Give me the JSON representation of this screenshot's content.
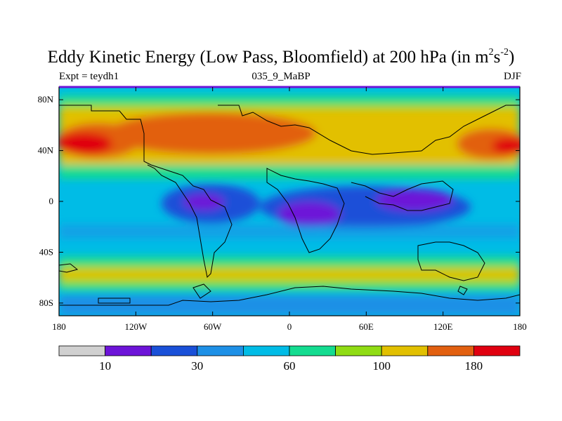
{
  "header": {
    "title_prefix": "Eddy Kinetic Energy (Low Pass, Bloomfield) at 200 hPa (in m",
    "title_sup1": "2",
    "title_mid": "s",
    "title_sup2": "-2",
    "title_suffix": ")",
    "left_label": "Expt = teydh1",
    "center_label": "035_9_MaBP",
    "right_label": "DJF"
  },
  "map": {
    "lon_tick_labels": [
      "180",
      "120W",
      "60W",
      "0",
      "60E",
      "120E",
      "180"
    ],
    "lat_tick_labels": [
      "80N",
      "40N",
      "0",
      "40S",
      "80S"
    ],
    "lon_ticks": [
      -180,
      -120,
      -60,
      0,
      60,
      120,
      180
    ],
    "lat_ticks": [
      80,
      40,
      0,
      -40,
      -80
    ],
    "lon_range": [
      -180,
      180
    ],
    "lat_range": [
      -90,
      90
    ]
  },
  "colorbar": {
    "colors": [
      "#d0d0d0",
      "#6d14d8",
      "#1a50d8",
      "#1e90e6",
      "#00bce6",
      "#14dc90",
      "#90dc14",
      "#e2c000",
      "#e26010",
      "#e00010"
    ],
    "labels": [
      "10",
      "30",
      "60",
      "100",
      "180"
    ],
    "label_boundary_index": [
      1,
      3,
      5,
      7,
      9
    ]
  },
  "chart_data": {
    "type": "heatmap",
    "title": "Eddy Kinetic Energy (Low Pass, Bloomfield) at 200 hPa (in m2s-2)",
    "subtitle": "035_9_MaBP",
    "left_annotation": "Expt = teydh1",
    "right_annotation": "DJF",
    "xlabel": "",
    "ylabel": "",
    "xlim": [
      -180,
      180
    ],
    "ylim": [
      -90,
      90
    ],
    "contour_labels": [
      "10",
      "30",
      "60",
      "100",
      "180"
    ],
    "description_fields": {
      "levels": 10,
      "approx_peaks_m2s2": {
        "north_atlantic_jet": 180,
        "north_pacific_edge": 180
      },
      "approx_minima_m2s2": {
        "tropical_africa": 10,
        "maritime_continent": 10,
        "tropical_south_america": 10
      }
    }
  }
}
